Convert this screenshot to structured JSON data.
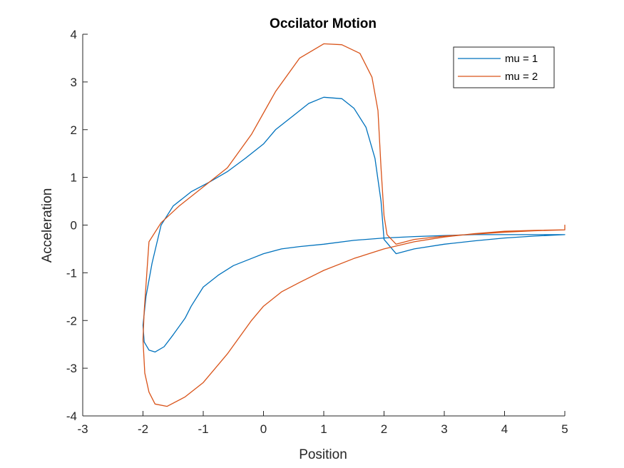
{
  "chart_data": {
    "type": "line",
    "title": "Occilator Motion",
    "xlabel": "Position",
    "ylabel": "Acceleration",
    "xlim": [
      -3,
      5
    ],
    "ylim": [
      -4,
      4
    ],
    "xticks": [
      "-3",
      "-2",
      "-1",
      "0",
      "1",
      "2",
      "3",
      "4",
      "5"
    ],
    "yticks": [
      "4",
      "3",
      "2",
      "1",
      "0",
      "-1",
      "-2",
      "-3",
      "-4"
    ],
    "grid": false,
    "legend": "top-right",
    "series": [
      {
        "name": "mu = 1",
        "color": "#0072BD",
        "x": [
          5.0,
          4.5,
          4.0,
          3.5,
          3.0,
          2.5,
          2.2,
          2.0,
          1.95,
          1.85,
          1.7,
          1.5,
          1.3,
          1.0,
          0.75,
          0.5,
          0.2,
          0.0,
          -0.3,
          -0.6,
          -0.9,
          -1.2,
          -1.5,
          -1.7,
          -1.85,
          -1.95,
          -2.0,
          -1.98,
          -1.9,
          -1.8,
          -1.65,
          -1.5,
          -1.3,
          -1.2,
          -1.0,
          -0.75,
          -0.5,
          -0.2,
          0.0,
          0.3,
          0.6,
          1.0,
          1.5,
          2.0,
          2.5,
          3.0,
          3.5,
          4.0,
          4.5,
          5.0,
          5.0
        ],
        "y": [
          -0.2,
          -0.23,
          -0.27,
          -0.33,
          -0.4,
          -0.5,
          -0.6,
          -0.3,
          0.5,
          1.4,
          2.05,
          2.45,
          2.65,
          2.68,
          2.55,
          2.3,
          2.0,
          1.7,
          1.4,
          1.12,
          0.9,
          0.7,
          0.4,
          0.0,
          -0.8,
          -1.5,
          -2.1,
          -2.45,
          -2.62,
          -2.66,
          -2.55,
          -2.3,
          -1.95,
          -1.7,
          -1.3,
          -1.05,
          -0.85,
          -0.7,
          -0.6,
          -0.5,
          -0.45,
          -0.4,
          -0.32,
          -0.27,
          -0.24,
          -0.22,
          -0.2,
          -0.2,
          -0.2,
          -0.2,
          -0.2
        ]
      },
      {
        "name": "mu = 2",
        "color": "#D95319",
        "x": [
          5.0,
          4.5,
          4.0,
          3.5,
          3.0,
          2.5,
          2.2,
          2.05,
          2.0,
          1.95,
          1.9,
          1.8,
          1.6,
          1.3,
          1.0,
          0.6,
          0.2,
          -0.2,
          -0.6,
          -1.0,
          -1.4,
          -1.7,
          -1.9,
          -1.98,
          -2.0,
          -1.97,
          -1.9,
          -1.8,
          -1.6,
          -1.3,
          -1.0,
          -0.6,
          -0.2,
          0.0,
          0.3,
          0.6,
          1.0,
          1.5,
          2.0,
          2.5,
          3.0,
          3.5,
          4.0,
          4.5,
          5.0,
          5.0
        ],
        "y": [
          -0.1,
          -0.12,
          -0.15,
          -0.19,
          -0.23,
          -0.3,
          -0.4,
          -0.2,
          0.2,
          1.2,
          2.4,
          3.1,
          3.6,
          3.78,
          3.8,
          3.5,
          2.8,
          1.9,
          1.2,
          0.8,
          0.4,
          0.05,
          -0.35,
          -1.8,
          -2.4,
          -3.1,
          -3.5,
          -3.75,
          -3.8,
          -3.6,
          -3.3,
          -2.7,
          -2.0,
          -1.7,
          -1.4,
          -1.2,
          -0.95,
          -0.7,
          -0.5,
          -0.35,
          -0.25,
          -0.18,
          -0.13,
          -0.11,
          -0.1,
          0.0
        ]
      }
    ]
  }
}
